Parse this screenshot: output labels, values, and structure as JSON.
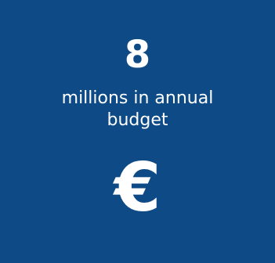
{
  "stat": {
    "value": "8",
    "label": "millions in annual budget"
  },
  "icon": {
    "name": "euro-icon",
    "glyph": "€"
  },
  "colors": {
    "background": "#0d4a86",
    "text": "#ffffff"
  }
}
